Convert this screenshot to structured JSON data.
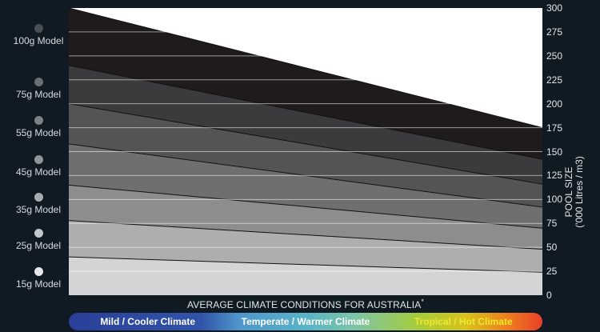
{
  "chart_data": {
    "type": "area",
    "y_axis": {
      "label_lines": [
        "POOL SIZE",
        "('000 Litres / m3)"
      ],
      "ticks": [
        "0",
        "25",
        "50",
        "75",
        "100",
        "125",
        "150",
        "175",
        "200",
        "225",
        "250",
        "275",
        "300"
      ],
      "ylim": [
        0,
        300
      ],
      "position": "right"
    },
    "xlabel": "AVERAGE CLIMATE CONDITIONS FOR AUSTRALIA",
    "xlabel_mark": "*",
    "grid": true,
    "x_categories": [
      "Mild / Cooler Climate",
      "Temperate / Warmer Climate",
      "Tropical / Hot Climate"
    ],
    "series": [
      {
        "name": "100g Model",
        "start": 300,
        "end": 175,
        "color": "#1f1b1c"
      },
      {
        "name": "75g Model",
        "start": 240,
        "end": 142,
        "color": "#3b3a3c"
      },
      {
        "name": "55g Model",
        "start": 200,
        "end": 116,
        "color": "#545456"
      },
      {
        "name": "45g Model",
        "start": 158,
        "end": 92,
        "color": "#6f6f71"
      },
      {
        "name": "35g Model",
        "start": 115,
        "end": 70,
        "color": "#8d8d8f"
      },
      {
        "name": "25g Model",
        "start": 78,
        "end": 48,
        "color": "#aeaeb0"
      },
      {
        "name": "15g Model",
        "start": 40,
        "end": 24,
        "color": "#d4d4d6"
      }
    ]
  },
  "legend_models": [
    {
      "label": "100g Model",
      "dot_color": "#4a4f55"
    },
    {
      "label": "75g Model",
      "dot_color": "#6a6f74"
    },
    {
      "label": "55g Model",
      "dot_color": "#7d8287"
    },
    {
      "label": "45g Model",
      "dot_color": "#90959a"
    },
    {
      "label": "35g Model",
      "dot_color": "#a8acb0"
    },
    {
      "label": "25g Model",
      "dot_color": "#c4c7ca"
    },
    {
      "label": "15g Model",
      "dot_color": "#e6e8ea"
    }
  ],
  "colors": {
    "plot_background": "#ffffff",
    "page_background": "#0f1a23"
  }
}
